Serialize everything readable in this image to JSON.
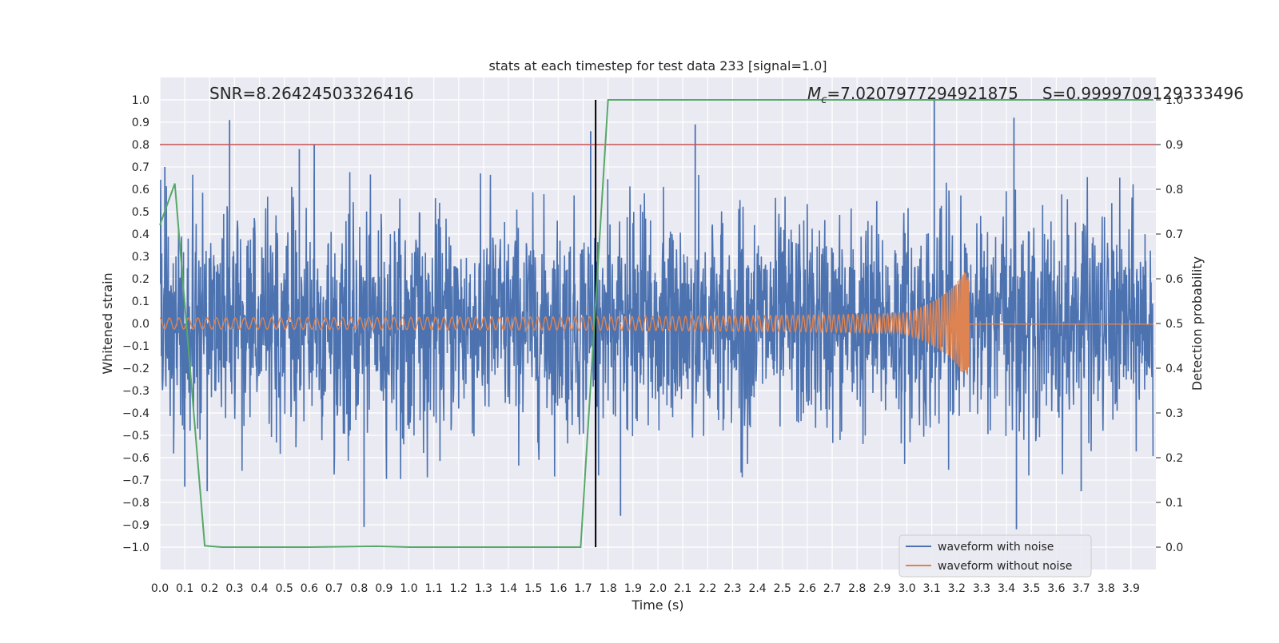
{
  "chart_data": {
    "type": "line",
    "title": "stats at each timestep for test data 233 [signal=1.0]",
    "xlabel": "Time (s)",
    "ylabel": "Whitened strain",
    "y2label": "Detection probability",
    "xlim": [
      0.0,
      4.0
    ],
    "ylim": [
      -1.1,
      1.1
    ],
    "y2lim": [
      -0.05,
      1.05
    ],
    "grid": true,
    "legend_position": "bottom-right",
    "annotations": {
      "snr": "SNR=8.26424503326416",
      "mc_symbol": "M",
      "mc_sub": "c",
      "mc_value": "=7.0207977294921875",
      "s_text": "S=0.9999709129333496"
    },
    "x_ticks": [
      "0.0",
      "0.1",
      "0.2",
      "0.3",
      "0.4",
      "0.5",
      "0.6",
      "0.7",
      "0.8",
      "0.9",
      "1.0",
      "1.1",
      "1.2",
      "1.3",
      "1.4",
      "1.5",
      "1.6",
      "1.7",
      "1.8",
      "1.9",
      "2.0",
      "2.1",
      "2.2",
      "2.3",
      "2.4",
      "2.5",
      "2.6",
      "2.7",
      "2.8",
      "2.9",
      "3.0",
      "3.1",
      "3.2",
      "3.3",
      "3.4",
      "3.5",
      "3.6",
      "3.7",
      "3.8",
      "3.9"
    ],
    "y_ticks": [
      "1.0",
      "0.9",
      "0.8",
      "0.7",
      "0.6",
      "0.5",
      "0.4",
      "0.3",
      "0.2",
      "0.1",
      "0.0",
      "−0.1",
      "−0.2",
      "−0.3",
      "−0.4",
      "−0.5",
      "−0.6",
      "−0.7",
      "−0.8",
      "−0.9",
      "−1.0"
    ],
    "y2_ticks": [
      "1.0",
      "0.9",
      "0.8",
      "0.7",
      "0.6",
      "0.5",
      "0.4",
      "0.3",
      "0.2",
      "0.1",
      "0.0"
    ],
    "threshold": {
      "axis": "y2",
      "value": 0.9,
      "color": "#c44e52"
    },
    "vertical_marker": {
      "x": 1.75,
      "y2_from": 0.0,
      "y2_to": 1.0,
      "color": "#000000"
    },
    "series": [
      {
        "name": "waveform with noise",
        "axis": "y",
        "color": "#4c72b0",
        "kind": "noise",
        "std": 0.24,
        "peaks": [
          {
            "x": 0.02,
            "y": 0.7
          },
          {
            "x": 0.28,
            "y": 0.91
          },
          {
            "x": 0.56,
            "y": 0.78
          },
          {
            "x": 0.62,
            "y": 0.8
          },
          {
            "x": 0.82,
            "y": -0.91
          },
          {
            "x": 0.1,
            "y": -0.73
          },
          {
            "x": 0.19,
            "y": -0.75
          },
          {
            "x": 1.73,
            "y": 0.86
          },
          {
            "x": 1.85,
            "y": -0.86
          },
          {
            "x": 3.11,
            "y": 1.0
          },
          {
            "x": 3.43,
            "y": 0.92
          },
          {
            "x": 3.44,
            "y": -0.92
          },
          {
            "x": 2.15,
            "y": 0.89
          },
          {
            "x": 3.7,
            "y": -0.75
          }
        ]
      },
      {
        "name": "waveform without noise",
        "axis": "y",
        "color": "#dd8452",
        "kind": "chirp",
        "t_merge": 3.25,
        "amp_start": 0.025,
        "amp_peak": 0.23
      },
      {
        "name": "detection probability",
        "axis": "y2",
        "color": "#55a868",
        "x": [
          0.0,
          0.06,
          0.18,
          0.25,
          0.6,
          0.87,
          1.0,
          1.4,
          1.69,
          1.8,
          3.99
        ],
        "values": [
          0.72,
          0.813,
          0.003,
          0.0,
          0.0,
          0.002,
          0.0,
          0.0,
          0.0,
          1.0,
          1.0
        ]
      }
    ]
  }
}
